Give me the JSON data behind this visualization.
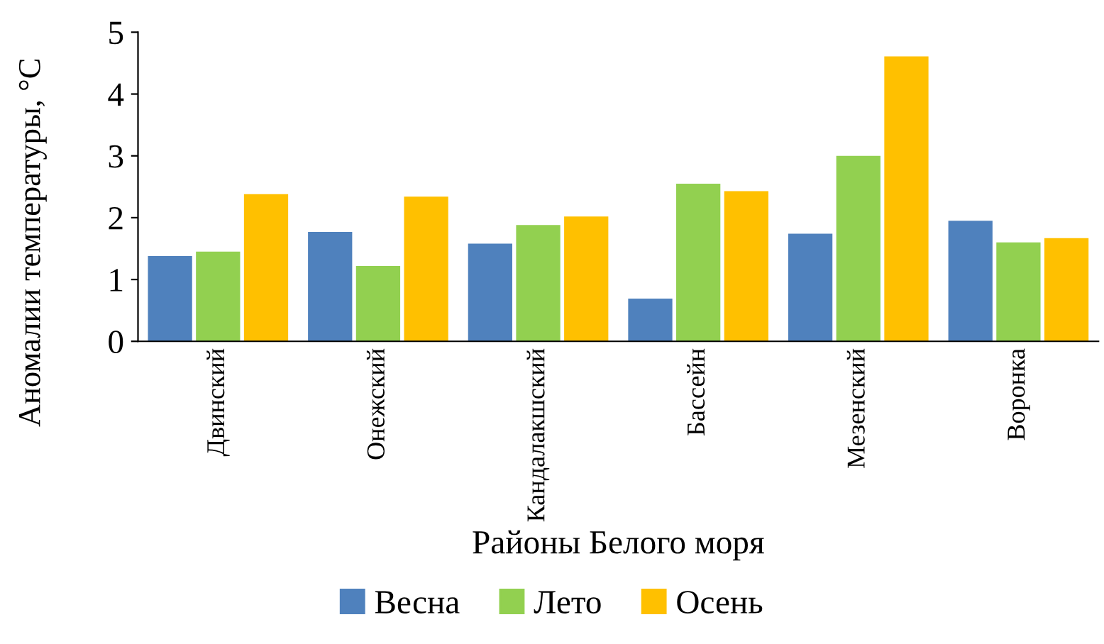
{
  "chart_data": {
    "type": "bar",
    "xlabel": "Районы Белого моря",
    "ylabel": "Аномалии температуры, °C",
    "categories": [
      "Двинский",
      "Онежский",
      "Кандалакшский",
      "Бассейн",
      "Мезенский",
      "Воронка"
    ],
    "series": [
      {
        "name": "Весна",
        "color": "#4f81bd",
        "values": [
          1.38,
          1.77,
          1.58,
          0.69,
          1.74,
          1.95
        ]
      },
      {
        "name": "Лето",
        "color": "#92d050",
        "values": [
          1.45,
          1.22,
          1.88,
          2.55,
          3.0,
          1.6
        ]
      },
      {
        "name": "Осень",
        "color": "#ffc000",
        "values": [
          2.38,
          2.34,
          2.02,
          2.43,
          4.61,
          1.67
        ]
      }
    ],
    "ylim": [
      0,
      5
    ],
    "yticks": [
      0,
      1,
      2,
      3,
      4,
      5
    ],
    "grid": false,
    "legend": "bottom"
  }
}
